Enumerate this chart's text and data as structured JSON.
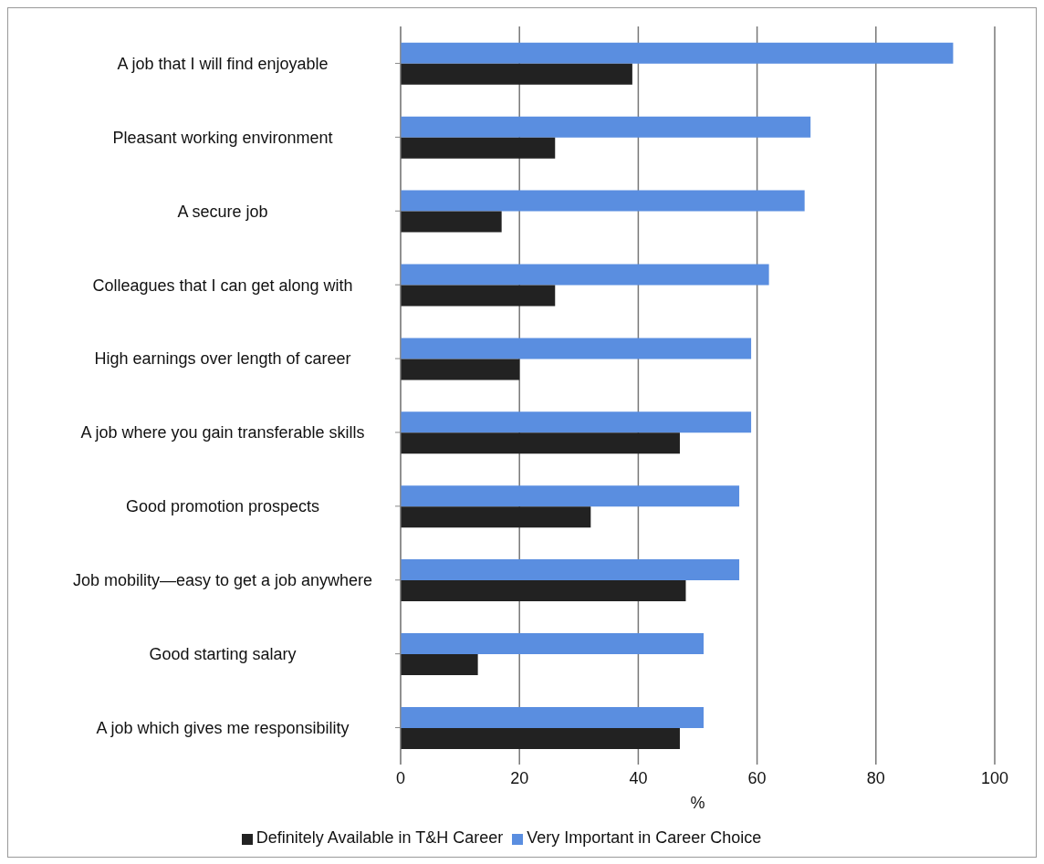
{
  "chart_data": {
    "type": "bar",
    "orientation": "horizontal",
    "xlabel": "%",
    "categories": [
      "A job that I will find enjoyable",
      "Pleasant working environment",
      "A secure job",
      "Colleagues that I can get along with",
      "High earnings over length of career",
      "A job where you gain transferable skills",
      "Good promotion prospects",
      "Job mobility—easy to get a job anywhere",
      "Good starting salary",
      "A job which gives me responsibility"
    ],
    "series": [
      {
        "name": "Very Important in Career Choice",
        "color": "#5a8ee0",
        "values": [
          93,
          69,
          68,
          62,
          59,
          59,
          57,
          57,
          51,
          51
        ]
      },
      {
        "name": "Definitely Available in T&H Career",
        "color": "#222222",
        "values": [
          39,
          26,
          17,
          26,
          20,
          47,
          32,
          48,
          13,
          47
        ]
      }
    ],
    "xlim": [
      0,
      100
    ],
    "xticks": [
      0,
      20,
      40,
      60,
      80,
      100
    ],
    "grid": "x",
    "legend": "bottom"
  }
}
